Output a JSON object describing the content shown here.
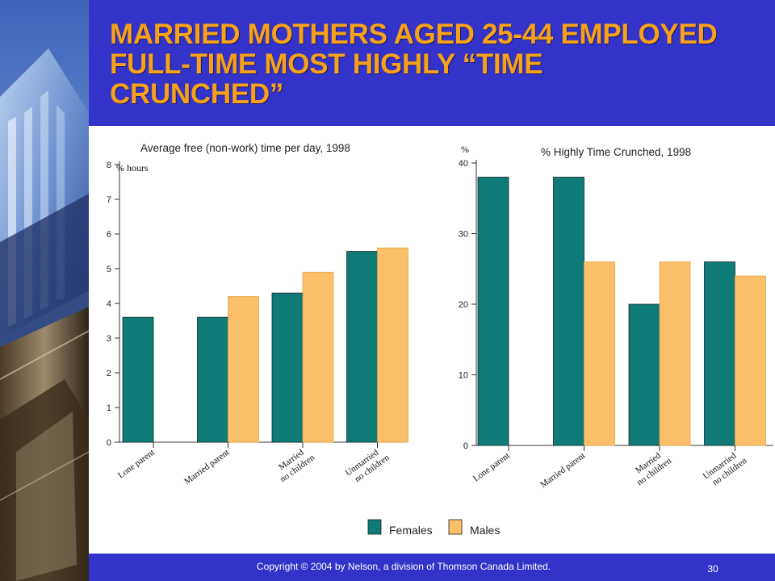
{
  "slide": {
    "title_lines": [
      "MARRIED MOTHERS AGED 25-44 EMPLOYED",
      "FULL-TIME MOST HIGHLY “TIME",
      "CRUNCHED”"
    ],
    "copyright": "Copyright © 2004 by Nelson, a division of Thomson Canada Limited.",
    "page_number": "30"
  },
  "colors": {
    "background": "#3333c9",
    "title": "#f7a11a",
    "females": "#0e7b77",
    "males": "#fbbf6a"
  },
  "legend": {
    "females": "Females",
    "males": "Males"
  },
  "chart_data": [
    {
      "type": "bar",
      "title": "Average free (non-work) time per day, 1998",
      "ylabel": "% hours",
      "categories": [
        [
          "Lone parent"
        ],
        [
          "Married parent"
        ],
        [
          "Married",
          "no children"
        ],
        [
          "Unmarried",
          "no children"
        ]
      ],
      "series": [
        {
          "name": "Females",
          "values": [
            3.6,
            3.6,
            4.3,
            5.5
          ]
        },
        {
          "name": "Males",
          "values": [
            null,
            4.2,
            4.9,
            5.6
          ]
        }
      ],
      "ylim": [
        0,
        8
      ],
      "yticks": [
        0,
        1,
        2,
        3,
        4,
        5,
        6,
        7,
        8
      ],
      "grid": false,
      "legend": "bottom"
    },
    {
      "type": "bar",
      "title": "% Highly Time Crunched, 1998",
      "ylabel": "%",
      "categories": [
        [
          "Lone parent"
        ],
        [
          "Married parent"
        ],
        [
          "Married",
          "no children"
        ],
        [
          "Unmarried",
          "no children"
        ]
      ],
      "series": [
        {
          "name": "Females",
          "values": [
            38,
            38,
            20,
            26
          ]
        },
        {
          "name": "Males",
          "values": [
            null,
            26,
            26,
            24
          ]
        }
      ],
      "ylim": [
        0,
        40
      ],
      "yticks": [
        0,
        10,
        20,
        30,
        40
      ],
      "grid": false,
      "legend": "bottom"
    }
  ]
}
